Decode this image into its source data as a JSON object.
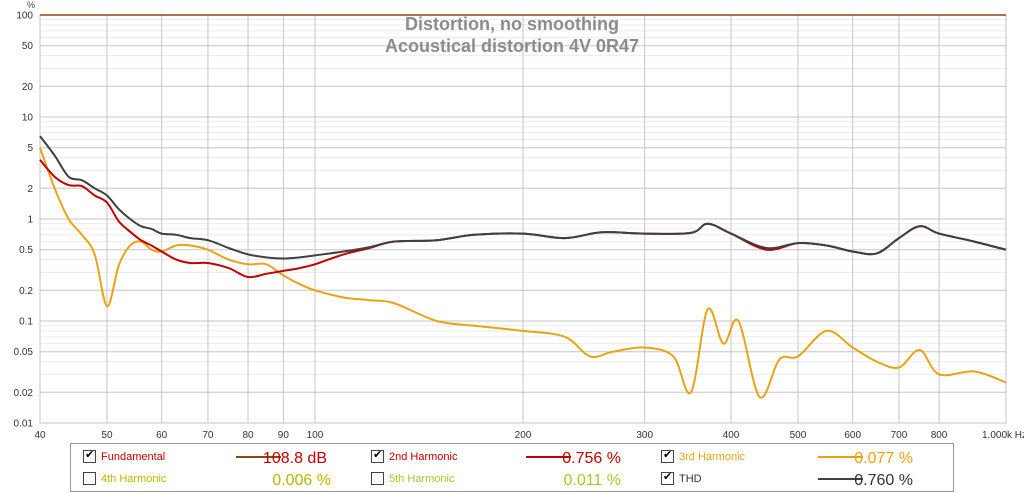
{
  "chart_data": {
    "type": "line",
    "title": "Distortion, no smoothing",
    "subtitle": "Acoustical distortion 4V 0R47",
    "yunit": "%",
    "xunit": "kHz",
    "xscale": "log",
    "yscale": "log",
    "xlim": [
      40,
      1000
    ],
    "ylim": [
      0.01,
      100
    ],
    "grid": true,
    "legend_position": "bottom",
    "ytick_labels": [
      "0.01",
      "0.02",
      "0.05",
      "0.1",
      "0.2",
      "0.5",
      "1",
      "2",
      "5",
      "10",
      "20",
      "50",
      "100"
    ],
    "xtick_labels": [
      "40",
      "50",
      "60",
      "70",
      "80",
      "90",
      "100",
      "200",
      "300",
      "400",
      "500",
      "600",
      "700",
      "800",
      "1.000k Hz"
    ],
    "series": [
      {
        "name": "Fundamental",
        "color": "#8b4513",
        "x": [
          40,
          1000
        ],
        "y": [
          100,
          100
        ]
      },
      {
        "name": "2nd Harmonic",
        "color": "#c00000",
        "x": [
          40,
          42,
          44,
          46,
          48,
          50,
          52,
          54,
          56,
          58,
          60,
          63,
          66,
          70,
          75,
          80,
          85,
          90,
          95,
          100,
          110,
          120,
          130,
          150,
          170,
          200,
          230,
          260,
          300,
          350,
          370,
          400,
          450,
          500,
          550,
          600,
          650,
          700,
          750,
          800,
          900,
          1000
        ],
        "y": [
          3.8,
          2.6,
          2.15,
          2.1,
          1.7,
          1.45,
          0.95,
          0.75,
          0.62,
          0.55,
          0.48,
          0.4,
          0.37,
          0.37,
          0.33,
          0.27,
          0.29,
          0.31,
          0.33,
          0.36,
          0.45,
          0.52,
          0.6,
          0.62,
          0.7,
          0.72,
          0.65,
          0.74,
          0.72,
          0.73,
          0.9,
          0.72,
          0.5,
          0.58,
          0.55,
          0.48,
          0.46,
          0.65,
          0.85,
          0.72,
          0.6,
          0.5
        ]
      },
      {
        "name": "3rd Harmonic",
        "color": "#e8a317",
        "x": [
          40,
          42,
          44,
          46,
          48,
          50,
          52,
          54,
          56,
          58,
          60,
          63,
          66,
          70,
          75,
          80,
          85,
          90,
          95,
          100,
          110,
          120,
          130,
          150,
          170,
          200,
          230,
          250,
          270,
          300,
          330,
          350,
          370,
          390,
          410,
          440,
          470,
          500,
          550,
          600,
          650,
          700,
          750,
          800,
          900,
          1000
        ],
        "y": [
          5,
          2.0,
          1.0,
          0.7,
          0.45,
          0.14,
          0.35,
          0.55,
          0.6,
          0.5,
          0.48,
          0.55,
          0.55,
          0.5,
          0.4,
          0.36,
          0.36,
          0.28,
          0.23,
          0.2,
          0.17,
          0.16,
          0.15,
          0.1,
          0.09,
          0.08,
          0.07,
          0.045,
          0.05,
          0.055,
          0.045,
          0.02,
          0.13,
          0.06,
          0.1,
          0.018,
          0.042,
          0.045,
          0.08,
          0.055,
          0.04,
          0.035,
          0.052,
          0.03,
          0.032,
          0.025
        ]
      },
      {
        "name": "THD",
        "color": "#404040",
        "x": [
          40,
          42,
          44,
          46,
          48,
          50,
          52,
          54,
          56,
          58,
          60,
          63,
          66,
          70,
          75,
          80,
          85,
          90,
          95,
          100,
          110,
          120,
          130,
          150,
          170,
          200,
          230,
          260,
          300,
          350,
          370,
          400,
          450,
          500,
          550,
          600,
          650,
          700,
          750,
          800,
          900,
          1000
        ],
        "y": [
          6.5,
          4.2,
          2.6,
          2.4,
          2.0,
          1.7,
          1.25,
          1.0,
          0.85,
          0.8,
          0.72,
          0.7,
          0.65,
          0.62,
          0.52,
          0.45,
          0.42,
          0.41,
          0.42,
          0.44,
          0.48,
          0.53,
          0.6,
          0.62,
          0.7,
          0.72,
          0.65,
          0.74,
          0.72,
          0.73,
          0.9,
          0.72,
          0.52,
          0.58,
          0.55,
          0.48,
          0.46,
          0.65,
          0.85,
          0.72,
          0.6,
          0.5
        ]
      }
    ]
  },
  "legend": {
    "items": [
      {
        "id": "fundamental",
        "label": "Fundamental",
        "value": "108.8 dB",
        "checked": true,
        "color": "#8b4513",
        "text_color": "#c00000",
        "value_color": "#c00000"
      },
      {
        "id": "2nd",
        "label": "2nd Harmonic",
        "value": "0.756 %",
        "checked": true,
        "color": "#c00000",
        "text_color": "#c00000",
        "value_color": "#c00000"
      },
      {
        "id": "3rd",
        "label": "3rd Harmonic",
        "value": "0.077 %",
        "checked": true,
        "color": "#e8a317",
        "text_color": "#e8a317",
        "value_color": "#e8a317"
      },
      {
        "id": "4th",
        "label": "4th Harmonic",
        "value": "0.006 %",
        "checked": false,
        "color": "",
        "text_color": "#b5b800",
        "value_color": "#b5b800"
      },
      {
        "id": "5th",
        "label": "5th Harmonic",
        "value": "0.011 %",
        "checked": false,
        "color": "",
        "text_color": "#9acd32",
        "value_color": "#9acd32"
      },
      {
        "id": "thd",
        "label": "THD",
        "value": "0.760 %",
        "checked": true,
        "color": "#404040",
        "text_color": "#333333",
        "value_color": "#333333"
      }
    ]
  }
}
